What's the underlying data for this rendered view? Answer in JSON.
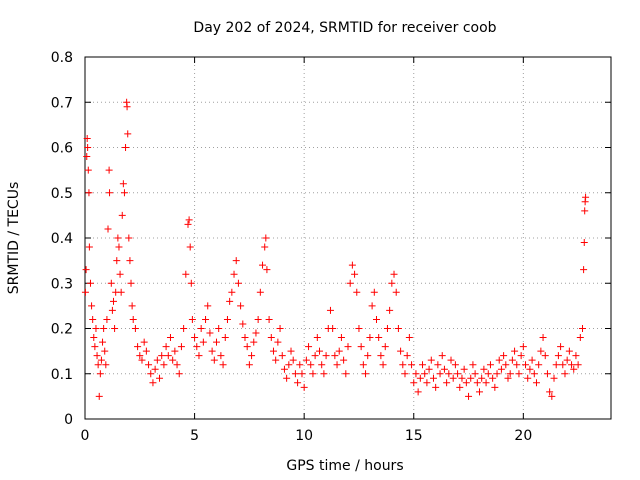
{
  "chart_data": {
    "type": "scatter",
    "title": "Day 202 of 2024, SRMTID for receiver coob",
    "xlabel": "GPS time / hours",
    "ylabel": "SRMTID / TECUs",
    "xlim": [
      0,
      24
    ],
    "ylim": [
      0,
      0.8
    ],
    "xticks": [
      0,
      5,
      10,
      15,
      20
    ],
    "xtick_labels": [
      "0",
      "5",
      "10",
      "15",
      "20"
    ],
    "yticks": [
      0,
      0.1,
      0.2,
      0.3,
      0.4,
      0.5,
      0.6,
      0.7,
      0.8
    ],
    "ytick_labels": [
      "0",
      "0.1",
      "0.2",
      "0.3",
      "0.4",
      "0.5",
      "0.6",
      "0.7",
      "0.8"
    ],
    "grid": true,
    "marker": "+",
    "color": "#ff0000",
    "series": [
      {
        "name": "SRMTID",
        "points": [
          [
            0.02,
            0.28
          ],
          [
            0.05,
            0.33
          ],
          [
            0.08,
            0.58
          ],
          [
            0.1,
            0.62
          ],
          [
            0.12,
            0.6
          ],
          [
            0.15,
            0.55
          ],
          [
            0.18,
            0.5
          ],
          [
            0.2,
            0.38
          ],
          [
            0.25,
            0.3
          ],
          [
            0.3,
            0.25
          ],
          [
            0.35,
            0.22
          ],
          [
            0.4,
            0.18
          ],
          [
            0.45,
            0.16
          ],
          [
            0.5,
            0.2
          ],
          [
            0.55,
            0.14
          ],
          [
            0.6,
            0.12
          ],
          [
            0.65,
            0.05
          ],
          [
            0.7,
            0.1
          ],
          [
            0.75,
            0.13
          ],
          [
            0.8,
            0.17
          ],
          [
            0.85,
            0.2
          ],
          [
            0.9,
            0.15
          ],
          [
            0.95,
            0.12
          ],
          [
            1.0,
            0.22
          ],
          [
            1.05,
            0.42
          ],
          [
            1.1,
            0.55
          ],
          [
            1.12,
            0.5
          ],
          [
            1.2,
            0.3
          ],
          [
            1.25,
            0.24
          ],
          [
            1.3,
            0.26
          ],
          [
            1.35,
            0.2
          ],
          [
            1.4,
            0.28
          ],
          [
            1.45,
            0.35
          ],
          [
            1.5,
            0.4
          ],
          [
            1.55,
            0.38
          ],
          [
            1.6,
            0.32
          ],
          [
            1.65,
            0.28
          ],
          [
            1.7,
            0.45
          ],
          [
            1.75,
            0.52
          ],
          [
            1.8,
            0.5
          ],
          [
            1.85,
            0.6
          ],
          [
            1.9,
            0.7
          ],
          [
            1.92,
            0.69
          ],
          [
            1.95,
            0.63
          ],
          [
            2.0,
            0.4
          ],
          [
            2.05,
            0.35
          ],
          [
            2.1,
            0.3
          ],
          [
            2.15,
            0.25
          ],
          [
            2.2,
            0.22
          ],
          [
            2.3,
            0.2
          ],
          [
            2.4,
            0.16
          ],
          [
            2.5,
            0.14
          ],
          [
            2.6,
            0.13
          ],
          [
            2.7,
            0.17
          ],
          [
            2.8,
            0.15
          ],
          [
            2.9,
            0.12
          ],
          [
            3.0,
            0.1
          ],
          [
            3.1,
            0.08
          ],
          [
            3.2,
            0.11
          ],
          [
            3.3,
            0.13
          ],
          [
            3.4,
            0.09
          ],
          [
            3.5,
            0.14
          ],
          [
            3.6,
            0.12
          ],
          [
            3.7,
            0.16
          ],
          [
            3.8,
            0.14
          ],
          [
            3.9,
            0.18
          ],
          [
            4.0,
            0.13
          ],
          [
            4.1,
            0.15
          ],
          [
            4.2,
            0.12
          ],
          [
            4.3,
            0.1
          ],
          [
            4.4,
            0.16
          ],
          [
            4.5,
            0.2
          ],
          [
            4.6,
            0.32
          ],
          [
            4.7,
            0.43
          ],
          [
            4.75,
            0.44
          ],
          [
            4.8,
            0.38
          ],
          [
            4.85,
            0.3
          ],
          [
            4.9,
            0.22
          ],
          [
            5.0,
            0.18
          ],
          [
            5.1,
            0.16
          ],
          [
            5.2,
            0.14
          ],
          [
            5.3,
            0.2
          ],
          [
            5.4,
            0.17
          ],
          [
            5.5,
            0.22
          ],
          [
            5.6,
            0.25
          ],
          [
            5.7,
            0.19
          ],
          [
            5.8,
            0.15
          ],
          [
            5.9,
            0.13
          ],
          [
            6.0,
            0.17
          ],
          [
            6.1,
            0.2
          ],
          [
            6.2,
            0.14
          ],
          [
            6.3,
            0.12
          ],
          [
            6.4,
            0.18
          ],
          [
            6.5,
            0.22
          ],
          [
            6.6,
            0.26
          ],
          [
            6.7,
            0.28
          ],
          [
            6.8,
            0.32
          ],
          [
            6.9,
            0.35
          ],
          [
            7.0,
            0.3
          ],
          [
            7.1,
            0.25
          ],
          [
            7.2,
            0.21
          ],
          [
            7.3,
            0.18
          ],
          [
            7.4,
            0.16
          ],
          [
            7.5,
            0.12
          ],
          [
            7.6,
            0.14
          ],
          [
            7.7,
            0.17
          ],
          [
            7.8,
            0.19
          ],
          [
            7.9,
            0.22
          ],
          [
            8.0,
            0.28
          ],
          [
            8.1,
            0.34
          ],
          [
            8.2,
            0.38
          ],
          [
            8.25,
            0.4
          ],
          [
            8.3,
            0.33
          ],
          [
            8.4,
            0.22
          ],
          [
            8.5,
            0.18
          ],
          [
            8.6,
            0.15
          ],
          [
            8.7,
            0.13
          ],
          [
            8.8,
            0.17
          ],
          [
            8.9,
            0.2
          ],
          [
            9.0,
            0.14
          ],
          [
            9.1,
            0.11
          ],
          [
            9.2,
            0.09
          ],
          [
            9.3,
            0.12
          ],
          [
            9.4,
            0.15
          ],
          [
            9.5,
            0.13
          ],
          [
            9.6,
            0.1
          ],
          [
            9.7,
            0.08
          ],
          [
            9.8,
            0.12
          ],
          [
            9.9,
            0.1
          ],
          [
            10.0,
            0.07
          ],
          [
            10.1,
            0.13
          ],
          [
            10.2,
            0.16
          ],
          [
            10.3,
            0.12
          ],
          [
            10.4,
            0.1
          ],
          [
            10.5,
            0.14
          ],
          [
            10.6,
            0.18
          ],
          [
            10.7,
            0.15
          ],
          [
            10.8,
            0.12
          ],
          [
            10.9,
            0.1
          ],
          [
            11.0,
            0.14
          ],
          [
            11.1,
            0.2
          ],
          [
            11.2,
            0.24
          ],
          [
            11.3,
            0.2
          ],
          [
            11.4,
            0.14
          ],
          [
            11.5,
            0.12
          ],
          [
            11.6,
            0.15
          ],
          [
            11.7,
            0.18
          ],
          [
            11.8,
            0.13
          ],
          [
            11.9,
            0.1
          ],
          [
            12.0,
            0.16
          ],
          [
            12.1,
            0.3
          ],
          [
            12.2,
            0.34
          ],
          [
            12.3,
            0.32
          ],
          [
            12.4,
            0.28
          ],
          [
            12.5,
            0.2
          ],
          [
            12.6,
            0.16
          ],
          [
            12.7,
            0.12
          ],
          [
            12.8,
            0.1
          ],
          [
            12.9,
            0.14
          ],
          [
            13.0,
            0.18
          ],
          [
            13.1,
            0.25
          ],
          [
            13.2,
            0.28
          ],
          [
            13.3,
            0.22
          ],
          [
            13.4,
            0.18
          ],
          [
            13.5,
            0.14
          ],
          [
            13.6,
            0.12
          ],
          [
            13.7,
            0.16
          ],
          [
            13.8,
            0.2
          ],
          [
            13.9,
            0.24
          ],
          [
            14.0,
            0.3
          ],
          [
            14.1,
            0.32
          ],
          [
            14.2,
            0.28
          ],
          [
            14.3,
            0.2
          ],
          [
            14.4,
            0.15
          ],
          [
            14.5,
            0.12
          ],
          [
            14.6,
            0.1
          ],
          [
            14.7,
            0.14
          ],
          [
            14.8,
            0.18
          ],
          [
            14.9,
            0.12
          ],
          [
            15.0,
            0.08
          ],
          [
            15.1,
            0.1
          ],
          [
            15.2,
            0.06
          ],
          [
            15.3,
            0.09
          ],
          [
            15.4,
            0.12
          ],
          [
            15.5,
            0.1
          ],
          [
            15.6,
            0.08
          ],
          [
            15.7,
            0.11
          ],
          [
            15.8,
            0.13
          ],
          [
            15.9,
            0.09
          ],
          [
            16.0,
            0.07
          ],
          [
            16.1,
            0.12
          ],
          [
            16.2,
            0.1
          ],
          [
            16.3,
            0.14
          ],
          [
            16.4,
            0.11
          ],
          [
            16.5,
            0.08
          ],
          [
            16.6,
            0.1
          ],
          [
            16.7,
            0.13
          ],
          [
            16.8,
            0.09
          ],
          [
            16.9,
            0.12
          ],
          [
            17.0,
            0.1
          ],
          [
            17.1,
            0.07
          ],
          [
            17.2,
            0.09
          ],
          [
            17.3,
            0.11
          ],
          [
            17.4,
            0.08
          ],
          [
            17.5,
            0.05
          ],
          [
            17.6,
            0.09
          ],
          [
            17.7,
            0.12
          ],
          [
            17.8,
            0.1
          ],
          [
            17.9,
            0.08
          ],
          [
            18.0,
            0.06
          ],
          [
            18.1,
            0.09
          ],
          [
            18.2,
            0.11
          ],
          [
            18.3,
            0.08
          ],
          [
            18.4,
            0.1
          ],
          [
            18.5,
            0.12
          ],
          [
            18.6,
            0.09
          ],
          [
            18.7,
            0.07
          ],
          [
            18.8,
            0.1
          ],
          [
            18.9,
            0.13
          ],
          [
            19.0,
            0.11
          ],
          [
            19.1,
            0.14
          ],
          [
            19.2,
            0.12
          ],
          [
            19.3,
            0.09
          ],
          [
            19.4,
            0.1
          ],
          [
            19.5,
            0.13
          ],
          [
            19.6,
            0.15
          ],
          [
            19.7,
            0.12
          ],
          [
            19.8,
            0.1
          ],
          [
            19.9,
            0.14
          ],
          [
            20.0,
            0.16
          ],
          [
            20.1,
            0.12
          ],
          [
            20.2,
            0.09
          ],
          [
            20.3,
            0.11
          ],
          [
            20.4,
            0.13
          ],
          [
            20.5,
            0.1
          ],
          [
            20.6,
            0.08
          ],
          [
            20.7,
            0.12
          ],
          [
            20.8,
            0.15
          ],
          [
            20.9,
            0.18
          ],
          [
            21.0,
            0.14
          ],
          [
            21.1,
            0.1
          ],
          [
            21.2,
            0.06
          ],
          [
            21.3,
            0.05
          ],
          [
            21.4,
            0.09
          ],
          [
            21.5,
            0.12
          ],
          [
            21.6,
            0.14
          ],
          [
            21.7,
            0.16
          ],
          [
            21.8,
            0.12
          ],
          [
            21.9,
            0.1
          ],
          [
            22.0,
            0.13
          ],
          [
            22.1,
            0.15
          ],
          [
            22.2,
            0.12
          ],
          [
            22.3,
            0.11
          ],
          [
            22.4,
            0.14
          ],
          [
            22.5,
            0.12
          ],
          [
            22.6,
            0.18
          ],
          [
            22.7,
            0.2
          ],
          [
            22.75,
            0.33
          ],
          [
            22.78,
            0.39
          ],
          [
            22.8,
            0.46
          ],
          [
            22.82,
            0.48
          ],
          [
            22.84,
            0.49
          ]
        ]
      }
    ]
  }
}
